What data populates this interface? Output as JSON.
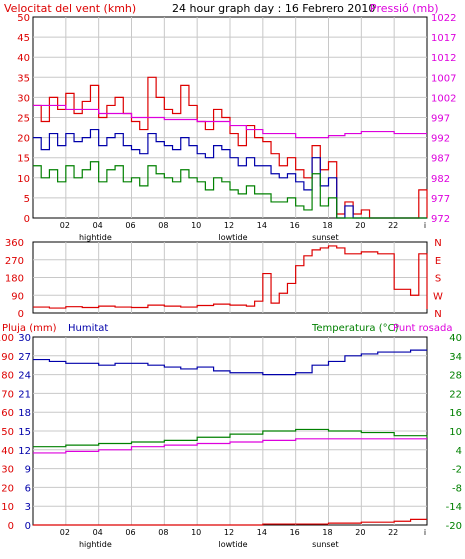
{
  "colors": {
    "wind_speed": "#dd0000",
    "wind_avg": "#0000aa",
    "wind_low": "#008000",
    "pressure": "#dd00dd",
    "direction": "#dd0000",
    "humidity": "#0000aa",
    "temperature": "#008000",
    "dewpoint": "#dd00dd",
    "rain": "#dd0000",
    "grid": "#c8c8c8",
    "axis": "#000000"
  },
  "header": {
    "left": "Velocitat del vent (kmh)",
    "center": "24 hour graph day : 16 Febrero 2010",
    "right": "Pressió (mb)"
  },
  "panel3_header": {
    "left1": "Pluja (mm)",
    "left2": "Humitat",
    "right1": "Temperatura (°C)",
    "right2": "Punt rosada"
  },
  "time_axis": {
    "ticks": [
      "02",
      "04",
      "06",
      "08",
      "10",
      "12",
      "14",
      "16",
      "18",
      "20",
      "22",
      "i"
    ],
    "events": [
      "hightide",
      "lowtide",
      "sunset"
    ]
  },
  "chart_data": [
    {
      "type": "line",
      "title": "24 hour graph day : 16 Febrero 2010",
      "ylabel": "Velocitat del vent (kmh)",
      "y2label": "Pressió (mb)",
      "ylim": [
        0,
        50
      ],
      "y_ticks": [
        "0",
        "5",
        "10",
        "15",
        "20",
        "25",
        "30",
        "35",
        "40",
        "45",
        "50"
      ],
      "y2lim": [
        972,
        1022
      ],
      "y2_ticks": [
        "972",
        "977",
        "982",
        "987",
        "992",
        "997",
        "1002",
        "1007",
        "1012",
        "1017",
        "1022"
      ],
      "x_hours": [
        0,
        24
      ],
      "series": [
        {
          "color": "#dd0000",
          "axis": "left",
          "points": [
            [
              0,
              28
            ],
            [
              0.5,
              24
            ],
            [
              1,
              30
            ],
            [
              1.5,
              27
            ],
            [
              2,
              31
            ],
            [
              2.5,
              26
            ],
            [
              3,
              29
            ],
            [
              3.5,
              33
            ],
            [
              4,
              25
            ],
            [
              4.5,
              28
            ],
            [
              5,
              30
            ],
            [
              5.5,
              26
            ],
            [
              6,
              24
            ],
            [
              6.5,
              22
            ],
            [
              7,
              35
            ],
            [
              7.5,
              30
            ],
            [
              8,
              27
            ],
            [
              8.5,
              26
            ],
            [
              9,
              33
            ],
            [
              9.5,
              28
            ],
            [
              10,
              24
            ],
            [
              10.5,
              22
            ],
            [
              11,
              27
            ],
            [
              11.5,
              25
            ],
            [
              12,
              21
            ],
            [
              12.5,
              18
            ],
            [
              13,
              23
            ],
            [
              13.5,
              20
            ],
            [
              14,
              19
            ],
            [
              14.5,
              16
            ],
            [
              15,
              13
            ],
            [
              15.5,
              15
            ],
            [
              16,
              12
            ],
            [
              16.5,
              10
            ],
            [
              17,
              18
            ],
            [
              17.5,
              12
            ],
            [
              18,
              14
            ],
            [
              18.5,
              1
            ],
            [
              19,
              4
            ],
            [
              19.5,
              1
            ],
            [
              20,
              2
            ],
            [
              20.5,
              0
            ],
            [
              21,
              0
            ],
            [
              22,
              0
            ],
            [
              23,
              0
            ],
            [
              23.5,
              7
            ],
            [
              24,
              0
            ]
          ]
        },
        {
          "color": "#0000aa",
          "axis": "left",
          "points": [
            [
              0,
              20
            ],
            [
              0.5,
              17
            ],
            [
              1,
              21
            ],
            [
              1.5,
              18
            ],
            [
              2,
              21
            ],
            [
              2.5,
              19
            ],
            [
              3,
              20
            ],
            [
              3.5,
              22
            ],
            [
              4,
              18
            ],
            [
              4.5,
              20
            ],
            [
              5,
              21
            ],
            [
              5.5,
              18
            ],
            [
              6,
              17
            ],
            [
              6.5,
              16
            ],
            [
              7,
              21
            ],
            [
              7.5,
              19
            ],
            [
              8,
              18
            ],
            [
              8.5,
              17
            ],
            [
              9,
              20
            ],
            [
              9.5,
              18
            ],
            [
              10,
              16
            ],
            [
              10.5,
              15
            ],
            [
              11,
              18
            ],
            [
              11.5,
              17
            ],
            [
              12,
              15
            ],
            [
              12.5,
              13
            ],
            [
              13,
              15
            ],
            [
              13.5,
              13
            ],
            [
              14,
              13
            ],
            [
              14.5,
              11
            ],
            [
              15,
              10
            ],
            [
              15.5,
              11
            ],
            [
              16,
              9
            ],
            [
              16.5,
              7
            ],
            [
              17,
              15
            ],
            [
              17.5,
              8
            ],
            [
              18,
              10
            ],
            [
              18.5,
              0
            ],
            [
              19,
              3
            ],
            [
              19.5,
              0
            ],
            [
              20,
              0
            ],
            [
              24,
              0
            ]
          ]
        },
        {
          "color": "#008000",
          "axis": "left",
          "points": [
            [
              0,
              13
            ],
            [
              0.5,
              10
            ],
            [
              1,
              12
            ],
            [
              1.5,
              9
            ],
            [
              2,
              13
            ],
            [
              2.5,
              10
            ],
            [
              3,
              12
            ],
            [
              3.5,
              14
            ],
            [
              4,
              9
            ],
            [
              4.5,
              12
            ],
            [
              5,
              13
            ],
            [
              5.5,
              9
            ],
            [
              6,
              10
            ],
            [
              6.5,
              8
            ],
            [
              7,
              13
            ],
            [
              7.5,
              11
            ],
            [
              8,
              10
            ],
            [
              8.5,
              9
            ],
            [
              9,
              12
            ],
            [
              9.5,
              10
            ],
            [
              10,
              9
            ],
            [
              10.5,
              7
            ],
            [
              11,
              10
            ],
            [
              11.5,
              9
            ],
            [
              12,
              7
            ],
            [
              12.5,
              6
            ],
            [
              13,
              8
            ],
            [
              13.5,
              6
            ],
            [
              14,
              6
            ],
            [
              14.5,
              4
            ],
            [
              15,
              4
            ],
            [
              15.5,
              5
            ],
            [
              16,
              3
            ],
            [
              16.5,
              2
            ],
            [
              17,
              11
            ],
            [
              17.5,
              3
            ],
            [
              18,
              5
            ],
            [
              18.5,
              0
            ],
            [
              24,
              0
            ]
          ]
        },
        {
          "color": "#dd00dd",
          "axis": "right",
          "points": [
            [
              0,
              1000
            ],
            [
              2,
              999
            ],
            [
              4,
              998
            ],
            [
              6,
              997
            ],
            [
              8,
              996.5
            ],
            [
              10,
              996
            ],
            [
              12,
              995
            ],
            [
              13,
              994
            ],
            [
              14,
              993
            ],
            [
              15,
              993
            ],
            [
              16,
              992
            ],
            [
              17,
              992
            ],
            [
              18,
              992.5
            ],
            [
              19,
              993
            ],
            [
              20,
              993.5
            ],
            [
              22,
              993
            ],
            [
              24,
              993
            ]
          ]
        }
      ]
    },
    {
      "type": "scatter",
      "ylabel": "wind direction",
      "ylim": [
        0,
        360
      ],
      "y_ticks": [
        "0",
        "90",
        "180",
        "270",
        "360"
      ],
      "direction_labels": [
        "N",
        "W",
        "S",
        "E",
        "N"
      ],
      "series": [
        {
          "color": "#dd0000",
          "points": [
            [
              0,
              30
            ],
            [
              1,
              25
            ],
            [
              2,
              32
            ],
            [
              3,
              28
            ],
            [
              4,
              35
            ],
            [
              5,
              30
            ],
            [
              6,
              28
            ],
            [
              7,
              40
            ],
            [
              8,
              35
            ],
            [
              9,
              30
            ],
            [
              10,
              38
            ],
            [
              11,
              45
            ],
            [
              12,
              40
            ],
            [
              13,
              35
            ],
            [
              13.5,
              60
            ],
            [
              14,
              200
            ],
            [
              14.5,
              50
            ],
            [
              15,
              100
            ],
            [
              15.5,
              150
            ],
            [
              16,
              240
            ],
            [
              16.5,
              290
            ],
            [
              17,
              320
            ],
            [
              17.5,
              330
            ],
            [
              18,
              340
            ],
            [
              18.5,
              330
            ],
            [
              19,
              300
            ],
            [
              20,
              310
            ],
            [
              21,
              300
            ],
            [
              22,
              120
            ],
            [
              23,
              90
            ],
            [
              23.5,
              300
            ],
            [
              24,
              20
            ]
          ]
        }
      ]
    },
    {
      "type": "line",
      "ylabel": "Pluja (mm)",
      "y_rain_lim": [
        0,
        100
      ],
      "y_rain_ticks": [
        "0",
        "10",
        "20",
        "30",
        "40",
        "50",
        "60",
        "70",
        "80",
        "90",
        "100"
      ],
      "y_hum_lim": [
        0,
        30
      ],
      "y_hum_ticks": [
        "0",
        "3",
        "6",
        "9",
        "12",
        "15",
        "18",
        "21",
        "24",
        "27",
        "30"
      ],
      "y2label": "Temperatura (°C)",
      "y2lim": [
        -20,
        40
      ],
      "y2_ticks": [
        "-20",
        "-14",
        "-8",
        "-2",
        "4",
        "10",
        "16",
        "22",
        "28",
        "34",
        "40"
      ],
      "series": [
        {
          "name": "Humitat",
          "color": "#0000aa",
          "axis": "rain",
          "points": [
            [
              0,
              88
            ],
            [
              1,
              87
            ],
            [
              2,
              86
            ],
            [
              3,
              86
            ],
            [
              4,
              85
            ],
            [
              5,
              86
            ],
            [
              6,
              86
            ],
            [
              7,
              85
            ],
            [
              8,
              84
            ],
            [
              9,
              83
            ],
            [
              10,
              84
            ],
            [
              11,
              82
            ],
            [
              12,
              81
            ],
            [
              13,
              81
            ],
            [
              14,
              80
            ],
            [
              15,
              80
            ],
            [
              16,
              81
            ],
            [
              17,
              85
            ],
            [
              18,
              87
            ],
            [
              19,
              90
            ],
            [
              20,
              91
            ],
            [
              21,
              92
            ],
            [
              22,
              92
            ],
            [
              23,
              93
            ],
            [
              24,
              93
            ]
          ]
        },
        {
          "name": "Temperatura (°C)",
          "color": "#008000",
          "axis": "temp",
          "points": [
            [
              0,
              5
            ],
            [
              2,
              5.5
            ],
            [
              4,
              6
            ],
            [
              6,
              6.5
            ],
            [
              8,
              7
            ],
            [
              10,
              8
            ],
            [
              12,
              9
            ],
            [
              14,
              10
            ],
            [
              16,
              10.5
            ],
            [
              18,
              10
            ],
            [
              20,
              9.5
            ],
            [
              22,
              8.5
            ],
            [
              24,
              8
            ]
          ]
        },
        {
          "name": "Punt rosada",
          "color": "#dd00dd",
          "axis": "temp",
          "points": [
            [
              0,
              3
            ],
            [
              2,
              3.5
            ],
            [
              4,
              4
            ],
            [
              6,
              5
            ],
            [
              8,
              5.5
            ],
            [
              10,
              6
            ],
            [
              12,
              6.5
            ],
            [
              14,
              7
            ],
            [
              16,
              7.5
            ],
            [
              18,
              7.5
            ],
            [
              20,
              7.5
            ],
            [
              22,
              7.5
            ],
            [
              24,
              7.5
            ]
          ]
        },
        {
          "name": "Pluja (mm)",
          "color": "#dd0000",
          "axis": "rain",
          "points": [
            [
              0,
              0
            ],
            [
              10,
              0
            ],
            [
              14,
              0.5
            ],
            [
              18,
              1
            ],
            [
              20,
              1.5
            ],
            [
              22,
              2
            ],
            [
              23,
              3
            ],
            [
              24,
              3
            ]
          ]
        }
      ]
    }
  ]
}
